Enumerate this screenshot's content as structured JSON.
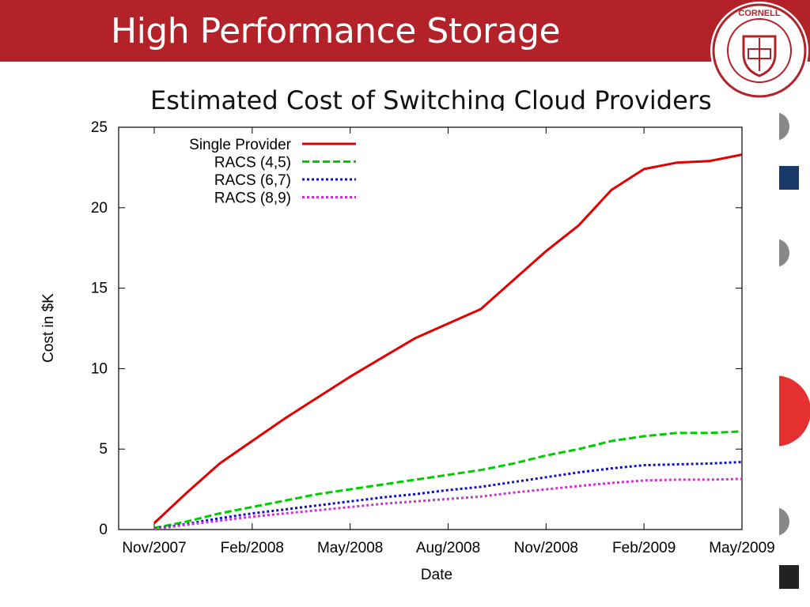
{
  "slide": {
    "title": "High Performance Storage",
    "subtitle": "Estimated Cost of Switching Cloud Providers"
  },
  "colors": {
    "title_bar": "#b22228",
    "single_provider": "#e00000",
    "racs_4_5": "#00cc00",
    "racs_6_7": "#1010c0",
    "racs_8_9": "#cc33cc"
  },
  "chart_data": {
    "type": "line",
    "title": "",
    "xlabel": "Date",
    "ylabel": "Cost in $K",
    "ylim": [
      0,
      25
    ],
    "yticks": [
      0,
      5,
      10,
      15,
      20,
      25
    ],
    "xticks": [
      "Nov/2007",
      "Feb/2008",
      "May/2008",
      "Aug/2008",
      "Nov/2008",
      "Feb/2009",
      "May/2009"
    ],
    "x_months": [
      "Nov/2007",
      "Dec/2007",
      "Jan/2008",
      "Feb/2008",
      "Mar/2008",
      "Apr/2008",
      "May/2008",
      "Jun/2008",
      "Jul/2008",
      "Aug/2008",
      "Sep/2008",
      "Oct/2008",
      "Nov/2008",
      "Dec/2008",
      "Jan/2009",
      "Feb/2009",
      "Mar/2009",
      "Apr/2009",
      "May/2009"
    ],
    "legend_position": "top-left",
    "grid": false,
    "series": [
      {
        "name": "Single Provider",
        "style": "solid",
        "color": "#e00000",
        "values": [
          0.4,
          2.3,
          4.1,
          5.5,
          6.9,
          8.2,
          9.5,
          10.7,
          11.9,
          12.8,
          13.7,
          15.5,
          17.3,
          18.9,
          21.1,
          22.4,
          22.8,
          22.9,
          23.3
        ]
      },
      {
        "name": "RACS (4,5)",
        "style": "dashed",
        "color": "#00cc00",
        "values": [
          0.1,
          0.5,
          1.0,
          1.4,
          1.8,
          2.2,
          2.5,
          2.8,
          3.1,
          3.4,
          3.7,
          4.1,
          4.6,
          5.0,
          5.5,
          5.8,
          6.0,
          6.0,
          6.1
        ]
      },
      {
        "name": "RACS (6,7)",
        "style": "dotted",
        "color": "#1010c0",
        "values": [
          0.05,
          0.35,
          0.7,
          1.0,
          1.25,
          1.5,
          1.75,
          2.0,
          2.2,
          2.45,
          2.65,
          2.95,
          3.25,
          3.55,
          3.8,
          4.0,
          4.05,
          4.1,
          4.2
        ]
      },
      {
        "name": "RACS (8,9)",
        "style": "dotted",
        "color": "#cc33cc",
        "values": [
          0.02,
          0.3,
          0.55,
          0.8,
          1.0,
          1.2,
          1.4,
          1.6,
          1.75,
          1.9,
          2.05,
          2.3,
          2.5,
          2.7,
          2.9,
          3.05,
          3.1,
          3.1,
          3.15
        ]
      }
    ]
  },
  "logo": {
    "name": "cornell-university-seal",
    "text": "CORNELL UNIVERSITY FOUNDED A.D. 1865"
  }
}
